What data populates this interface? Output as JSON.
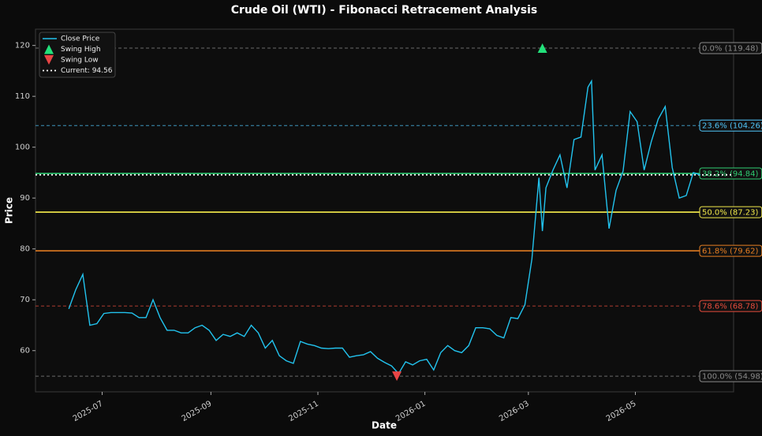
{
  "chart_data": {
    "type": "line",
    "title": "Crude Oil (WTI) - Fibonacci Retracement Analysis",
    "x_label": "Date",
    "y_label": "Price",
    "x": [
      "2025-06-12",
      "2025-06-16",
      "2025-06-20",
      "2025-06-24",
      "2025-06-28",
      "2025-07-02",
      "2025-07-06",
      "2025-07-10",
      "2025-07-14",
      "2025-07-18",
      "2025-07-22",
      "2025-07-26",
      "2025-07-30",
      "2025-08-03",
      "2025-08-07",
      "2025-08-11",
      "2025-08-15",
      "2025-08-19",
      "2025-08-23",
      "2025-08-27",
      "2025-08-31",
      "2025-09-04",
      "2025-09-08",
      "2025-09-12",
      "2025-09-16",
      "2025-09-20",
      "2025-09-24",
      "2025-09-28",
      "2025-10-02",
      "2025-10-06",
      "2025-10-10",
      "2025-10-14",
      "2025-10-18",
      "2025-10-22",
      "2025-10-26",
      "2025-10-30",
      "2025-11-03",
      "2025-11-07",
      "2025-11-11",
      "2025-11-15",
      "2025-11-19",
      "2025-11-23",
      "2025-11-27",
      "2025-12-01",
      "2025-12-05",
      "2025-12-09",
      "2025-12-13",
      "2025-12-17",
      "2025-12-21",
      "2025-12-25",
      "2025-12-29",
      "2026-01-02",
      "2026-01-06",
      "2026-01-10",
      "2026-01-14",
      "2026-01-18",
      "2026-01-22",
      "2026-01-26",
      "2026-01-30",
      "2026-02-03",
      "2026-02-07",
      "2026-02-11",
      "2026-02-15",
      "2026-02-19",
      "2026-02-23",
      "2026-02-27",
      "2026-03-03",
      "2026-03-07",
      "2026-03-09",
      "2026-03-11",
      "2026-03-15",
      "2026-03-19",
      "2026-03-23",
      "2026-03-27",
      "2026-03-31",
      "2026-04-04",
      "2026-04-06",
      "2026-04-08",
      "2026-04-12",
      "2026-04-16",
      "2026-04-20",
      "2026-04-24",
      "2026-04-28",
      "2026-05-02",
      "2026-05-06",
      "2026-05-10",
      "2026-05-14",
      "2026-05-18",
      "2026-05-22",
      "2026-05-26",
      "2026-05-30",
      "2026-06-03",
      "2026-06-07"
    ],
    "series": [
      {
        "name": "Close Price",
        "color": "#22c3ee",
        "values": [
          68.2,
          72,
          75,
          65,
          65.3,
          67.3,
          67.5,
          67.5,
          67.5,
          67.4,
          66.5,
          66.5,
          70,
          66.5,
          64,
          64,
          63.5,
          63.5,
          64.5,
          65,
          64,
          62,
          63.2,
          62.8,
          63.5,
          62.8,
          65,
          63.5,
          60.5,
          62,
          59,
          58,
          57.5,
          61.8,
          61.3,
          61,
          60.5,
          60.4,
          60.5,
          60.5,
          58.7,
          59,
          59.2,
          59.8,
          58.5,
          57.7,
          57,
          55.5,
          57.8,
          57.2,
          58,
          58.3,
          56.2,
          59.6,
          61,
          60,
          59.6,
          61,
          64.5,
          64.5,
          64.3,
          63,
          62.5,
          66.5,
          66.3,
          69,
          78,
          94,
          83.5,
          92,
          95.5,
          98.5,
          92,
          101.5,
          102,
          111.8,
          113,
          95.5,
          98.5,
          84,
          91.5,
          95.3,
          107,
          105,
          95.5,
          101,
          105.5,
          108,
          96,
          90,
          90.5,
          95,
          94.56
        ]
      }
    ],
    "swing_high": {
      "name": "Swing High",
      "x": "2026-03-09",
      "value": 119.48,
      "color": "#22e07a"
    },
    "swing_low": {
      "name": "Swing Low",
      "x": "2025-12-16",
      "value": 54.98,
      "color": "#e84545"
    },
    "current": {
      "name": "Current: 94.56",
      "value": 94.56,
      "color": "#ffffff"
    },
    "fib_levels": [
      {
        "label": "0.0% (119.48)",
        "value": 119.48,
        "color": "#8a8a8a",
        "style": "dashed"
      },
      {
        "label": "23.6% (104.26)",
        "value": 104.26,
        "color": "#4fc3f7",
        "style": "dashed"
      },
      {
        "label": "38.2% (94.84)",
        "value": 94.84,
        "color": "#2ecc71",
        "style": "solid"
      },
      {
        "label": "50.0% (87.23)",
        "value": 87.23,
        "color": "#f1e84a",
        "style": "solid"
      },
      {
        "label": "61.8% (79.62)",
        "value": 79.62,
        "color": "#e67e22",
        "style": "solid"
      },
      {
        "label": "78.6% (68.78)",
        "value": 68.78,
        "color": "#e74c3c",
        "style": "dashed"
      },
      {
        "label": "100.0% (54.98)",
        "value": 54.98,
        "color": "#8a8a8a",
        "style": "dashed"
      }
    ],
    "xlim": [
      "2025-05-24",
      "2026-06-26"
    ],
    "xticks": [
      {
        "value": "2025-07-01",
        "label": "2025-07"
      },
      {
        "value": "2025-09-01",
        "label": "2025-09"
      },
      {
        "value": "2025-11-01",
        "label": "2025-11"
      },
      {
        "value": "2026-01-01",
        "label": "2026-01"
      },
      {
        "value": "2026-03-01",
        "label": "2026-03"
      },
      {
        "value": "2026-05-01",
        "label": "2026-05"
      }
    ],
    "ylim": [
      51.9,
      123.2
    ],
    "yticks": [
      60,
      70,
      80,
      90,
      100,
      110,
      120
    ],
    "legend": "upper left",
    "grid": false
  }
}
